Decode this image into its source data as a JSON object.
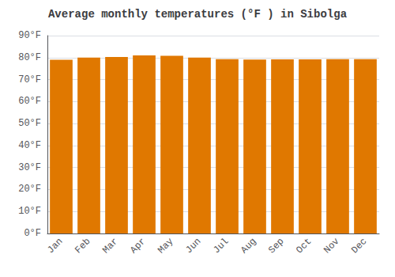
{
  "chart_data": {
    "type": "bar",
    "title": "Average monthly temperatures (°F ) in Sibolga",
    "categories": [
      "Jan",
      "Feb",
      "Mar",
      "Apr",
      "May",
      "Jun",
      "Jul",
      "Aug",
      "Sep",
      "Oct",
      "Nov",
      "Dec"
    ],
    "values": [
      79.0,
      80.0,
      80.3,
      81.0,
      80.8,
      80.0,
      79.3,
      79.1,
      79.2,
      79.2,
      79.3,
      79.3
    ],
    "color": "#E07800",
    "ylim": [
      0,
      90
    ],
    "yticks": [
      {
        "value": 0,
        "label": "0°F"
      },
      {
        "value": 10,
        "label": "10°F"
      },
      {
        "value": 20,
        "label": "20°F"
      },
      {
        "value": 30,
        "label": "30°F"
      },
      {
        "value": 40,
        "label": "40°F"
      },
      {
        "value": 50,
        "label": "50°F"
      },
      {
        "value": 60,
        "label": "60°F"
      },
      {
        "value": 70,
        "label": "70°F"
      },
      {
        "value": 80,
        "label": "80°F"
      },
      {
        "value": 90,
        "label": "90°F"
      }
    ],
    "grid": true
  }
}
